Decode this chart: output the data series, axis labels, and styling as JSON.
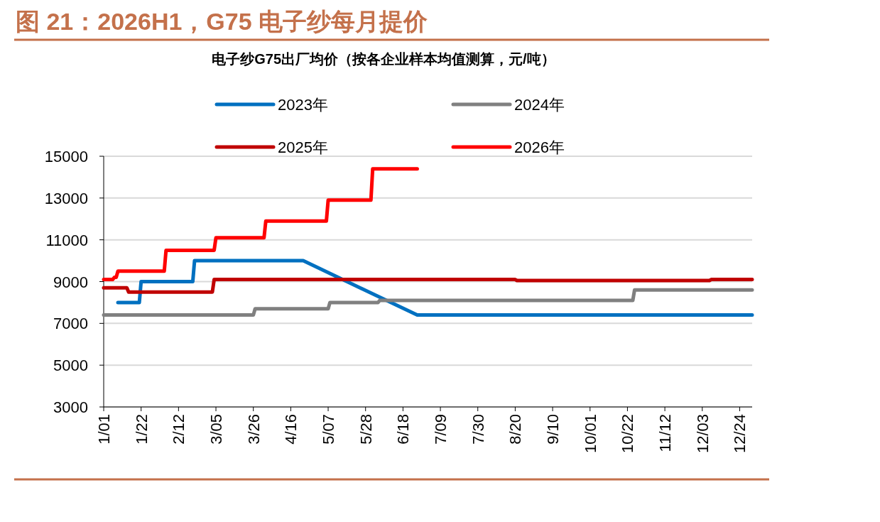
{
  "chart_data": {
    "type": "line",
    "title": "图 21：2026H1，G75 电子纱每月提价",
    "subtitle": "电子纱G75出厂均价（按各企业样本均值测算，元/吨）",
    "xlim": [
      "--01-01",
      "--12-31"
    ],
    "xticks": [
      {
        "value": "--01-01",
        "label": "1/01"
      },
      {
        "value": "--01-22",
        "label": "1/22"
      },
      {
        "value": "--02-12",
        "label": "2/12"
      },
      {
        "value": "--03-05",
        "label": "3/05"
      },
      {
        "value": "--03-26",
        "label": "3/26"
      },
      {
        "value": "--04-16",
        "label": "4/16"
      },
      {
        "value": "--05-07",
        "label": "5/07"
      },
      {
        "value": "--05-28",
        "label": "5/28"
      },
      {
        "value": "--06-18",
        "label": "6/18"
      },
      {
        "value": "--07-09",
        "label": "7/09"
      },
      {
        "value": "--07-30",
        "label": "7/30"
      },
      {
        "value": "--08-20",
        "label": "8/20"
      },
      {
        "value": "--09-10",
        "label": "9/10"
      },
      {
        "value": "--10-01",
        "label": "10/01"
      },
      {
        "value": "--10-22",
        "label": "10/22"
      },
      {
        "value": "--11-12",
        "label": "11/12"
      },
      {
        "value": "--12-03",
        "label": "12/03"
      },
      {
        "value": "--12-24",
        "label": "12/24"
      }
    ],
    "ylim": [
      3000,
      15000
    ],
    "yticks": [
      3000,
      5000,
      7000,
      9000,
      11000,
      13000,
      15000
    ],
    "grid": "y",
    "legend": "top",
    "line_style": "solid",
    "series": [
      {
        "name": "2023年",
        "color": "#0070c0",
        "x": [
          "--01-09",
          "--01-21",
          "--01-22",
          "--02-20",
          "--02-21",
          "--04-23",
          "--06-26",
          "--12-31"
        ],
        "values": [
          8000,
          8000,
          9000,
          9000,
          10000,
          10000,
          7400,
          7400
        ]
      },
      {
        "name": "2024年",
        "color": "#808080",
        "x": [
          "--01-01",
          "--03-26",
          "--03-27",
          "--05-07",
          "--05-08",
          "--06-04",
          "--06-05",
          "--10-25",
          "--10-26",
          "--12-31"
        ],
        "values": [
          7400,
          7400,
          7700,
          7700,
          8000,
          8000,
          8100,
          8100,
          8600,
          8600
        ]
      },
      {
        "name": "2025年",
        "color": "#c00000",
        "x": [
          "--01-01",
          "--01-14",
          "--01-15",
          "--03-03",
          "--03-04",
          "--08-20",
          "--08-21",
          "--12-07",
          "--12-08",
          "--12-31"
        ],
        "values": [
          8700,
          8700,
          8500,
          8500,
          9100,
          9100,
          9050,
          9050,
          9100,
          9100
        ]
      },
      {
        "name": "2026年",
        "color": "#ff0000",
        "x": [
          "--01-01",
          "--01-06",
          "--01-07",
          "--01-08",
          "--01-09",
          "--02-04",
          "--02-05",
          "--03-04",
          "--03-05",
          "--04-01",
          "--04-02",
          "--05-06",
          "--05-07",
          "--05-31",
          "--06-01",
          "--06-26"
        ],
        "values": [
          9100,
          9100,
          9200,
          9200,
          9500,
          9500,
          10500,
          10500,
          11100,
          11100,
          11900,
          11900,
          12900,
          12900,
          14400,
          14400
        ]
      }
    ]
  }
}
